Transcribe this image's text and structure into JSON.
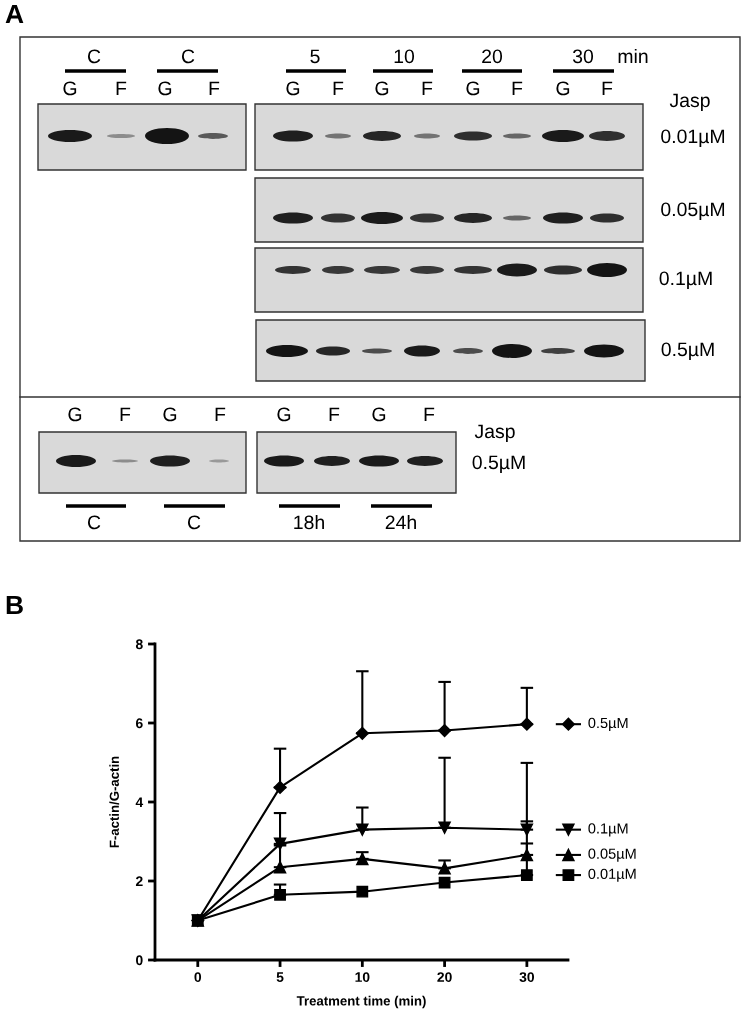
{
  "chart_data": [
    {
      "type": "other",
      "title": "A",
      "annotations": [
        "C",
        "C",
        "5",
        "10",
        "20",
        "30",
        "min",
        "G",
        "F",
        "G",
        "F",
        "G",
        "F",
        "G",
        "F",
        "G",
        "F",
        "G",
        "F",
        "Jasp",
        "0.01µM",
        "0.05µM",
        "0.1µM",
        "0.5µM",
        "G",
        "F",
        "G",
        "F",
        "G",
        "F",
        "G",
        "F",
        "Jasp",
        "0.5µM",
        "C",
        "C",
        "18h",
        "24h"
      ]
    },
    {
      "type": "line",
      "title": "B",
      "xlabel": "Treatment time (min)",
      "ylabel": "F-actin/G-actin",
      "categories": [
        "0",
        "5",
        "10",
        "20",
        "30"
      ],
      "ylim": [
        0,
        8
      ],
      "yticks": [
        0,
        2,
        4,
        6,
        8
      ],
      "legend": "right",
      "line_style": "solid",
      "series": [
        {
          "name": "0.5µM",
          "color": "#000000",
          "marker": "diamond",
          "values": [
            1,
            4.37,
            5.74,
            5.81,
            5.97
          ],
          "errors": [
            null,
            [
              4.37,
              5.35
            ],
            [
              5.74,
              7.31
            ],
            [
              5.81,
              7.04
            ],
            [
              5.97,
              6.89
            ]
          ]
        },
        {
          "name": "0.1µM",
          "color": "#000000",
          "marker": "triangle-down",
          "values": [
            1,
            2.94,
            3.3,
            3.35,
            3.3
          ],
          "errors": [
            null,
            [
              2.94,
              3.72
            ],
            [
              3.3,
              3.86
            ],
            [
              3.35,
              5.12
            ],
            [
              3.3,
              4.99
            ]
          ]
        },
        {
          "name": "0.05µM",
          "color": "#000000",
          "marker": "triangle",
          "values": [
            1,
            2.35,
            2.56,
            2.32,
            2.66
          ],
          "errors": [
            null,
            [
              2.35,
              2.9
            ],
            [
              2.56,
              2.73
            ],
            [
              2.32,
              2.52
            ],
            [
              2.66,
              2.95
            ]
          ]
        },
        {
          "name": "0.01µM",
          "color": "#000000",
          "marker": "square",
          "values": [
            1,
            1.65,
            1.73,
            1.96,
            2.15
          ],
          "errors": [
            null,
            [
              1.65,
              1.91
            ],
            null,
            null,
            [
              2.15,
              3.51
            ]
          ]
        }
      ]
    }
  ]
}
